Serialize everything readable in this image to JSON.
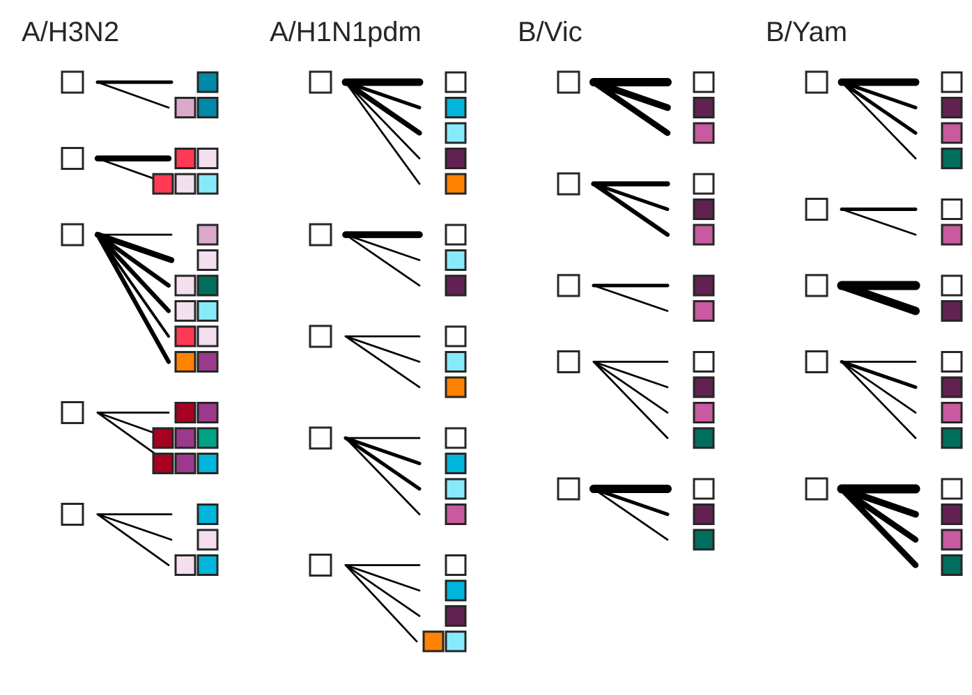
{
  "colors": {
    "box_stroke": "#262626",
    "line": "#000000",
    "palette": {
      "teal_blue": "#0288A8",
      "mauve": "#DBA9CC",
      "red": "#FF3A55",
      "pale_pink": "#F3DFEE",
      "light_cyan": "#87EAFB",
      "dark_green": "#006E5D",
      "orange": "#FF8300",
      "purple": "#9B3A8C",
      "crimson": "#A70021",
      "green": "#00A385",
      "cyan": "#00B5DB",
      "white": "#FFFFFF",
      "plum": "#612151",
      "magenta": "#C85A9F"
    }
  },
  "panels": [
    {
      "title": "A/H3N2",
      "groups": [
        {
          "branches": [
            {
              "colors": [
                "teal_blue"
              ],
              "weight": 3
            },
            {
              "colors": [
                "mauve",
                "teal_blue"
              ],
              "weight": 1
            }
          ]
        },
        {
          "branches": [
            {
              "colors": [
                "red",
                "pale_pink"
              ],
              "weight": 6
            },
            {
              "colors": [
                "red",
                "pale_pink",
                "light_cyan"
              ],
              "weight": 1
            }
          ]
        },
        {
          "branches": [
            {
              "colors": [
                "mauve"
              ],
              "weight": 1
            },
            {
              "colors": [
                "pale_pink"
              ],
              "weight": 6
            },
            {
              "colors": [
                "pale_pink",
                "dark_green"
              ],
              "weight": 4
            },
            {
              "colors": [
                "pale_pink",
                "light_cyan"
              ],
              "weight": 4
            },
            {
              "colors": [
                "red",
                "pale_pink"
              ],
              "weight": 2
            },
            {
              "colors": [
                "orange",
                "purple"
              ],
              "weight": 4
            }
          ]
        },
        {
          "branches": [
            {
              "colors": [
                "crimson",
                "purple"
              ],
              "weight": 1
            },
            {
              "colors": [
                "crimson",
                "purple",
                "green"
              ],
              "weight": 1
            },
            {
              "colors": [
                "crimson",
                "purple",
                "cyan"
              ],
              "weight": 1
            }
          ]
        },
        {
          "branches": [
            {
              "colors": [
                "cyan"
              ],
              "weight": 1
            },
            {
              "colors": [
                "pale_pink"
              ],
              "weight": 1
            },
            {
              "colors": [
                "pale_pink",
                "cyan"
              ],
              "weight": 1
            }
          ]
        }
      ]
    },
    {
      "title": "A/H1N1pdm",
      "groups": [
        {
          "branches": [
            {
              "colors": [
                "white"
              ],
              "weight": 8
            },
            {
              "colors": [
                "cyan"
              ],
              "weight": 3
            },
            {
              "colors": [
                "light_cyan"
              ],
              "weight": 5
            },
            {
              "colors": [
                "plum"
              ],
              "weight": 1
            },
            {
              "colors": [
                "orange"
              ],
              "weight": 1
            }
          ]
        },
        {
          "branches": [
            {
              "colors": [
                "white"
              ],
              "weight": 7
            },
            {
              "colors": [
                "light_cyan"
              ],
              "weight": 1
            },
            {
              "colors": [
                "plum"
              ],
              "weight": 1
            }
          ]
        },
        {
          "branches": [
            {
              "colors": [
                "white"
              ],
              "weight": 1
            },
            {
              "colors": [
                "light_cyan"
              ],
              "weight": 1
            },
            {
              "colors": [
                "orange"
              ],
              "weight": 1
            }
          ]
        },
        {
          "branches": [
            {
              "colors": [
                "white"
              ],
              "weight": 1
            },
            {
              "colors": [
                "cyan"
              ],
              "weight": 3
            },
            {
              "colors": [
                "light_cyan"
              ],
              "weight": 3
            },
            {
              "colors": [
                "magenta"
              ],
              "weight": 1
            }
          ]
        },
        {
          "branches": [
            {
              "colors": [
                "white"
              ],
              "weight": 1
            },
            {
              "colors": [
                "cyan"
              ],
              "weight": 1
            },
            {
              "colors": [
                "plum"
              ],
              "weight": 1
            },
            {
              "colors": [
                "orange",
                "light_cyan"
              ],
              "weight": 1
            }
          ]
        }
      ]
    },
    {
      "title": "B/Vic",
      "groups": [
        {
          "branches": [
            {
              "colors": [
                "white"
              ],
              "weight": 9
            },
            {
              "colors": [
                "plum"
              ],
              "weight": 7
            },
            {
              "colors": [
                "magenta"
              ],
              "weight": 6
            }
          ]
        },
        {
          "branches": [
            {
              "colors": [
                "white"
              ],
              "weight": 5
            },
            {
              "colors": [
                "plum"
              ],
              "weight": 3
            },
            {
              "colors": [
                "magenta"
              ],
              "weight": 4
            }
          ]
        },
        {
          "branches": [
            {
              "colors": [
                "plum"
              ],
              "weight": 3
            },
            {
              "colors": [
                "magenta"
              ],
              "weight": 1
            }
          ]
        },
        {
          "branches": [
            {
              "colors": [
                "white"
              ],
              "weight": 1
            },
            {
              "colors": [
                "plum"
              ],
              "weight": 1
            },
            {
              "colors": [
                "magenta"
              ],
              "weight": 1
            },
            {
              "colors": [
                "dark_green"
              ],
              "weight": 1
            }
          ]
        },
        {
          "branches": [
            {
              "colors": [
                "white"
              ],
              "weight": 9
            },
            {
              "colors": [
                "plum"
              ],
              "weight": 3
            },
            {
              "colors": [
                "dark_green"
              ],
              "weight": 1
            }
          ]
        }
      ]
    },
    {
      "title": "B/Yam",
      "groups": [
        {
          "branches": [
            {
              "colors": [
                "white"
              ],
              "weight": 8
            },
            {
              "colors": [
                "plum"
              ],
              "weight": 3
            },
            {
              "colors": [
                "magenta"
              ],
              "weight": 3
            },
            {
              "colors": [
                "dark_green"
              ],
              "weight": 1
            }
          ]
        },
        {
          "branches": [
            {
              "colors": [
                "white"
              ],
              "weight": 3
            },
            {
              "colors": [
                "magenta"
              ],
              "weight": 1
            }
          ]
        },
        {
          "branches": [
            {
              "colors": [
                "white"
              ],
              "weight": 10
            },
            {
              "colors": [
                "plum"
              ],
              "weight": 9
            }
          ]
        },
        {
          "branches": [
            {
              "colors": [
                "white"
              ],
              "weight": 1
            },
            {
              "colors": [
                "plum"
              ],
              "weight": 3
            },
            {
              "colors": [
                "magenta"
              ],
              "weight": 1
            },
            {
              "colors": [
                "dark_green"
              ],
              "weight": 1
            }
          ]
        },
        {
          "branches": [
            {
              "colors": [
                "white"
              ],
              "weight": 10
            },
            {
              "colors": [
                "plum"
              ],
              "weight": 7
            },
            {
              "colors": [
                "magenta"
              ],
              "weight": 6
            },
            {
              "colors": [
                "dark_green"
              ],
              "weight": 6
            }
          ]
        }
      ]
    }
  ]
}
